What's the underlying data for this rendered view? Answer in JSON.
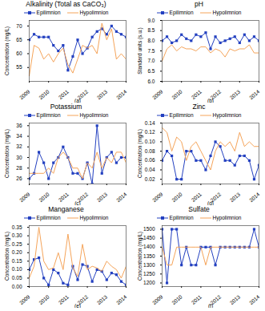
{
  "chart_data": [
    {
      "type": "line",
      "title": "Alkalinity (Total as CaCO₃)",
      "ylabel": "Concentration (mg/L)",
      "xlabel": "(a)",
      "x": [
        2009,
        2009.25,
        2009.5,
        2009.75,
        2010,
        2010.25,
        2010.5,
        2010.75,
        2011,
        2011.25,
        2011.5,
        2011.75,
        2012,
        2012.25,
        2012.5,
        2012.75,
        2013,
        2013.25,
        2013.5,
        2013.75,
        2014
      ],
      "xlim": [
        2009,
        2014
      ],
      "xticks": [
        2009,
        2010,
        2011,
        2012,
        2013,
        2014
      ],
      "ylim": [
        50,
        72
      ],
      "yticks": [
        55,
        60,
        65,
        70
      ],
      "legend": "top",
      "series": [
        {
          "name": "Epilimnion",
          "color": "#2340c0",
          "marker": "square",
          "values": [
            65,
            67,
            66,
            66,
            66,
            63,
            61,
            63,
            54,
            59,
            65,
            60,
            62,
            66,
            68,
            69,
            67,
            70,
            68,
            67,
            66
          ]
        },
        {
          "name": "Hypolimnion",
          "color": "#f5a45a",
          "marker": "none",
          "values": [
            52,
            63,
            62,
            58,
            60,
            57,
            60,
            62,
            56,
            53,
            58,
            63,
            62,
            63,
            60,
            71,
            65,
            69,
            58,
            60,
            58
          ]
        }
      ]
    },
    {
      "type": "line",
      "title": "pH",
      "ylabel": "Standard units (s.u.)",
      "xlabel": "(b)",
      "x": [
        2009,
        2009.25,
        2009.5,
        2009.75,
        2010,
        2010.25,
        2010.5,
        2010.75,
        2011,
        2011.25,
        2011.5,
        2011.75,
        2012,
        2012.25,
        2012.5,
        2012.75,
        2013,
        2013.25,
        2013.5,
        2013.75,
        2014
      ],
      "xlim": [
        2009,
        2014
      ],
      "xticks": [
        2009,
        2010,
        2011,
        2012,
        2013,
        2014
      ],
      "ylim": [
        6,
        9
      ],
      "yticks": [
        {
          "value": 6,
          "label": "6.0"
        },
        6.5,
        {
          "value": 7,
          "label": "7.0"
        },
        7.5,
        {
          "value": 8,
          "label": "8.0"
        },
        8.5,
        {
          "value": 9,
          "label": "9.0"
        }
      ],
      "legend": "top",
      "series": [
        {
          "name": "Epilimnion",
          "color": "#2340c0",
          "marker": "square",
          "values": [
            8.0,
            8.2,
            7.9,
            8.0,
            8.3,
            8.1,
            8.0,
            8.3,
            8.2,
            8.4,
            7.6,
            8.2,
            7.9,
            8.0,
            8.1,
            8.2,
            7.9,
            8.3,
            8.0,
            8.2,
            8.0
          ]
        },
        {
          "name": "Hypolimnion",
          "color": "#f5a45a",
          "marker": "none",
          "values": [
            7.0,
            7.6,
            7.8,
            7.5,
            7.7,
            7.6,
            7.6,
            7.5,
            7.7,
            7.7,
            7.4,
            7.6,
            7.5,
            7.2,
            7.6,
            7.5,
            7.6,
            7.6,
            7.8,
            7.4,
            7.4
          ]
        }
      ]
    },
    {
      "type": "line",
      "title": "Potassium",
      "ylabel": "Concentration (mg/L)",
      "xlabel": "(c)",
      "x": [
        2009,
        2009.25,
        2009.5,
        2009.75,
        2010,
        2010.25,
        2010.5,
        2010.75,
        2011,
        2011.25,
        2011.5,
        2011.75,
        2012,
        2012.25,
        2012.5,
        2012.75,
        2013,
        2013.25,
        2013.5,
        2013.75,
        2014
      ],
      "xlim": [
        2009,
        2014
      ],
      "xticks": [
        2009,
        2010,
        2011,
        2012,
        2013,
        2014
      ],
      "ylim": [
        25,
        36.5
      ],
      "yticks": [
        26,
        28,
        30,
        32,
        34,
        36
      ],
      "legend": "top",
      "series": [
        {
          "name": "Epilimnion",
          "color": "#2340c0",
          "marker": "square",
          "values": [
            26,
            27,
            31,
            29,
            26,
            29,
            30,
            32,
            30,
            27,
            27,
            26,
            29,
            25,
            36,
            27,
            30,
            31,
            29,
            30,
            30
          ]
        },
        {
          "name": "Hypolimnion",
          "color": "#f5a45a",
          "marker": "none",
          "values": [
            27,
            27,
            27,
            27,
            28,
            27,
            30,
            31,
            30,
            28,
            28,
            26,
            29,
            28,
            31,
            28,
            30,
            29,
            31,
            31,
            29
          ]
        }
      ]
    },
    {
      "type": "line",
      "title": "Zinc",
      "ylabel": "Concentration (mg/L)",
      "xlabel": "(d)",
      "x": [
        2009,
        2009.25,
        2009.5,
        2009.75,
        2010,
        2010.25,
        2010.5,
        2010.75,
        2011,
        2011.25,
        2011.5,
        2011.75,
        2012,
        2012.25,
        2012.5,
        2012.75,
        2013,
        2013.25,
        2013.5,
        2013.75,
        2014
      ],
      "xlim": [
        2009,
        2014
      ],
      "xticks": [
        2009,
        2010,
        2011,
        2012,
        2013,
        2014
      ],
      "ylim": [
        0.01,
        0.14
      ],
      "yticks": [
        0.02,
        0.04,
        0.06,
        0.08,
        {
          "value": 0.1,
          "label": "0.10"
        },
        0.12,
        0.14
      ],
      "legend": "top",
      "series": [
        {
          "name": "Epilimnion",
          "color": "#2340c0",
          "marker": "square",
          "values": [
            0.06,
            0.08,
            0.07,
            0.02,
            0.02,
            0.08,
            0.08,
            0.06,
            0.06,
            0.04,
            0.07,
            0.1,
            0.09,
            0.06,
            0.06,
            0.05,
            0.07,
            0.07,
            0.06,
            0.02,
            0.05
          ]
        },
        {
          "name": "Hypolimnion",
          "color": "#f5a45a",
          "marker": "none",
          "values": [
            0.13,
            0.12,
            0.08,
            0.11,
            0.1,
            0.06,
            0.09,
            0.1,
            0.08,
            0.06,
            0.04,
            0.08,
            0.1,
            0.09,
            0.1,
            0.08,
            0.12,
            0.09,
            0.1,
            0.09,
            0.09
          ]
        }
      ]
    },
    {
      "type": "line",
      "title": "Manganese",
      "ylabel": "Concentration (mg/L)",
      "xlabel": "(e)",
      "x": [
        2009,
        2009.25,
        2009.5,
        2009.75,
        2010,
        2010.25,
        2010.5,
        2010.75,
        2011,
        2011.25,
        2011.5,
        2011.75,
        2012,
        2012.25,
        2012.5,
        2012.75,
        2013,
        2013.25,
        2013.5,
        2013.75,
        2014
      ],
      "xlim": [
        2009,
        2014
      ],
      "xticks": [
        2009,
        2010,
        2011,
        2012,
        2013,
        2014
      ],
      "ylim": [
        0,
        0.36
      ],
      "yticks": [
        {
          "value": 0,
          "label": "0.00"
        },
        0.05,
        {
          "value": 0.1,
          "label": "0.10"
        },
        0.15,
        {
          "value": 0.2,
          "label": "0.20"
        },
        0.25,
        {
          "value": 0.3,
          "label": "0.30"
        },
        0.35
      ],
      "legend": "top",
      "series": [
        {
          "name": "Epilimnion",
          "color": "#2340c0",
          "marker": "square",
          "values": [
            0.1,
            0.16,
            0.17,
            0.05,
            0.01,
            0.1,
            0.08,
            0.02,
            0.01,
            0.12,
            0.04,
            0.13,
            0.12,
            0.03,
            0.1,
            0.09,
            0.04,
            0.08,
            0.07,
            0.03,
            0.01
          ]
        },
        {
          "name": "Hypolimnion",
          "color": "#f5a45a",
          "marker": "none",
          "values": [
            0.05,
            0.12,
            0.35,
            0.15,
            0.1,
            0.11,
            0.2,
            0.1,
            0.31,
            0.11,
            0.06,
            0.25,
            0.1,
            0.12,
            0.11,
            0.09,
            0.15,
            0.12,
            0.1,
            0.05,
            0.12
          ]
        }
      ]
    },
    {
      "type": "line",
      "title": "Sulfate",
      "ylabel": "Concentration (mg/L)",
      "xlabel": "(f)",
      "x": [
        2009,
        2009.25,
        2009.5,
        2009.75,
        2010,
        2010.25,
        2010.5,
        2010.75,
        2011,
        2011.25,
        2011.5,
        2011.75,
        2012,
        2012.25,
        2012.5,
        2012.75,
        2013,
        2013.25,
        2013.5,
        2013.75,
        2014
      ],
      "xlim": [
        2009,
        2014
      ],
      "xticks": [
        2009,
        2010,
        2011,
        2012,
        2013,
        2014
      ],
      "ylim": [
        1180,
        1520
      ],
      "yticks": [
        1200,
        1250,
        1300,
        1350,
        1400,
        1450,
        1500
      ],
      "legend": "top",
      "series": [
        {
          "name": "Epilimnion",
          "color": "#2340c0",
          "marker": "square",
          "values": [
            1500,
            1200,
            1500,
            1500,
            1300,
            1400,
            1300,
            1300,
            1400,
            1400,
            1400,
            1300,
            1400,
            1400,
            1400,
            1400,
            1400,
            1400,
            1400,
            1500,
            1400
          ]
        },
        {
          "name": "Hypolimnion",
          "color": "#f5a45a",
          "marker": "none",
          "values": [
            1400,
            1300,
            1300,
            1400,
            1400,
            1400,
            1400,
            1400,
            1400,
            1300,
            1400,
            1400,
            1400,
            1400,
            1400,
            1400,
            1400,
            1400,
            1400,
            1400,
            1400
          ]
        }
      ]
    }
  ]
}
